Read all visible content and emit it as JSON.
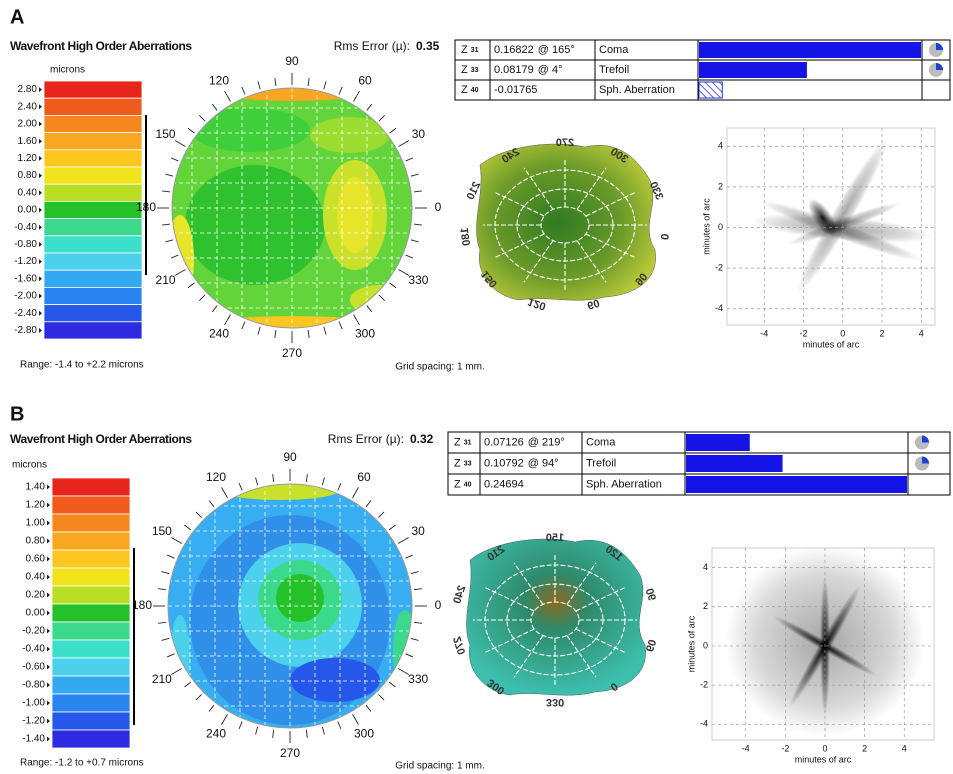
{
  "panels": [
    {
      "label": "A",
      "title": "Wavefront High Order Aberrations",
      "rms_label": "Rms Error (µ):",
      "rms_value": 0.35,
      "scale": {
        "unit": "microns",
        "range": "Range: -1.4 to +2.2 microns",
        "levels": [
          {
            "label": "2.80",
            "color": "#e8251b"
          },
          {
            "label": "2.40",
            "color": "#f05a1c"
          },
          {
            "label": "2.00",
            "color": "#f6861e"
          },
          {
            "label": "1.60",
            "color": "#f9a620"
          },
          {
            "label": "1.20",
            "color": "#fbc61f"
          },
          {
            "label": "0.80",
            "color": "#f1e41d"
          },
          {
            "label": "0.40",
            "color": "#b9de22"
          },
          {
            "label": "0.00",
            "color": "#25c12b"
          },
          {
            "label": "-0.40",
            "color": "#3ad98c"
          },
          {
            "label": "-0.80",
            "color": "#3cdfc9"
          },
          {
            "label": "-1.20",
            "color": "#4bd1ec"
          },
          {
            "label": "-1.60",
            "color": "#33a9f1"
          },
          {
            "label": "-2.00",
            "color": "#2a84ef"
          },
          {
            "label": "-2.40",
            "color": "#2558ea"
          },
          {
            "label": "-2.80",
            "color": "#2d2ae0"
          }
        ]
      },
      "map": {
        "angles": [
          0,
          30,
          60,
          90,
          120,
          150,
          180,
          210,
          240,
          270,
          300,
          330
        ],
        "grid_spacing": "Grid spacing: 1 mm."
      },
      "zernike": [
        {
          "symbol": "Z",
          "index": "31",
          "coefficient": 0.16822,
          "angle": "@ 165°",
          "name": "Coma"
        },
        {
          "symbol": "Z",
          "index": "33",
          "coefficient": 0.08179,
          "angle": "@  4°",
          "name": "Trefoil"
        },
        {
          "symbol": "Z",
          "index": "40",
          "coefficient": -0.01765,
          "name": "Sph. Aberration"
        }
      ],
      "surface": {
        "labels": [
          "270",
          "300",
          "330",
          "0",
          "90",
          "60",
          "120",
          "150",
          "180",
          "210",
          "240"
        ]
      },
      "psf": {
        "xlabel": "minutes of arc",
        "ylabel": "minutes of arc",
        "xlim": [
          -5.9,
          4.7
        ],
        "ylim": [
          -4.8,
          4.9
        ],
        "xticks": [
          -4,
          -2,
          0,
          2,
          4
        ],
        "yticks": [
          -4,
          -2,
          0,
          2,
          4
        ]
      }
    },
    {
      "label": "B",
      "title": "Wavefront High Order Aberrations",
      "rms_label": "Rms Error (µ):",
      "rms_value": 0.32,
      "scale": {
        "unit": "microns",
        "range": "Range: -1.2 to +0.7 microns",
        "levels": [
          {
            "label": "1.40",
            "color": "#e8251b"
          },
          {
            "label": "1.20",
            "color": "#f05a1c"
          },
          {
            "label": "1.00",
            "color": "#f6861e"
          },
          {
            "label": "0.80",
            "color": "#f9a620"
          },
          {
            "label": "0.60",
            "color": "#fbc61f"
          },
          {
            "label": "0.40",
            "color": "#f1e41d"
          },
          {
            "label": "0.20",
            "color": "#b9de22"
          },
          {
            "label": "0.00",
            "color": "#25c12b"
          },
          {
            "label": "-0.20",
            "color": "#3ad98c"
          },
          {
            "label": "-0.40",
            "color": "#3cdfc9"
          },
          {
            "label": "-0.60",
            "color": "#4bd1ec"
          },
          {
            "label": "-0.80",
            "color": "#33a9f1"
          },
          {
            "label": "-1.00",
            "color": "#2a84ef"
          },
          {
            "label": "-1.20",
            "color": "#2558ea"
          },
          {
            "label": "-1.40",
            "color": "#2d2ae0"
          }
        ]
      },
      "map": {
        "angles": [
          0,
          30,
          60,
          90,
          120,
          150,
          180,
          210,
          240,
          270,
          300,
          330
        ],
        "grid_spacing": "Grid spacing: 1 mm."
      },
      "zernike": [
        {
          "symbol": "Z",
          "index": "31",
          "coefficient": 0.07126,
          "angle": "@ 219°",
          "name": "Coma"
        },
        {
          "symbol": "Z",
          "index": "33",
          "coefficient": 0.10792,
          "angle": "@ 94°",
          "name": "Trefoil"
        },
        {
          "symbol": "Z",
          "index": "40",
          "coefficient": 0.24694,
          "name": "Sph. Aberration"
        }
      ],
      "surface": {
        "labels": [
          "150",
          "120",
          "90",
          "60",
          "0",
          "330",
          "300",
          "270",
          "240",
          "210"
        ]
      },
      "psf": {
        "xlabel": "minutes of arc",
        "ylabel": "minutes of arc",
        "xlim": [
          -5.7,
          5.5
        ],
        "ylim": [
          -4.8,
          5.0
        ],
        "xticks": [
          -4,
          -2,
          0,
          2,
          4
        ],
        "yticks": [
          -4,
          -2,
          0,
          2,
          4
        ]
      }
    }
  ]
}
